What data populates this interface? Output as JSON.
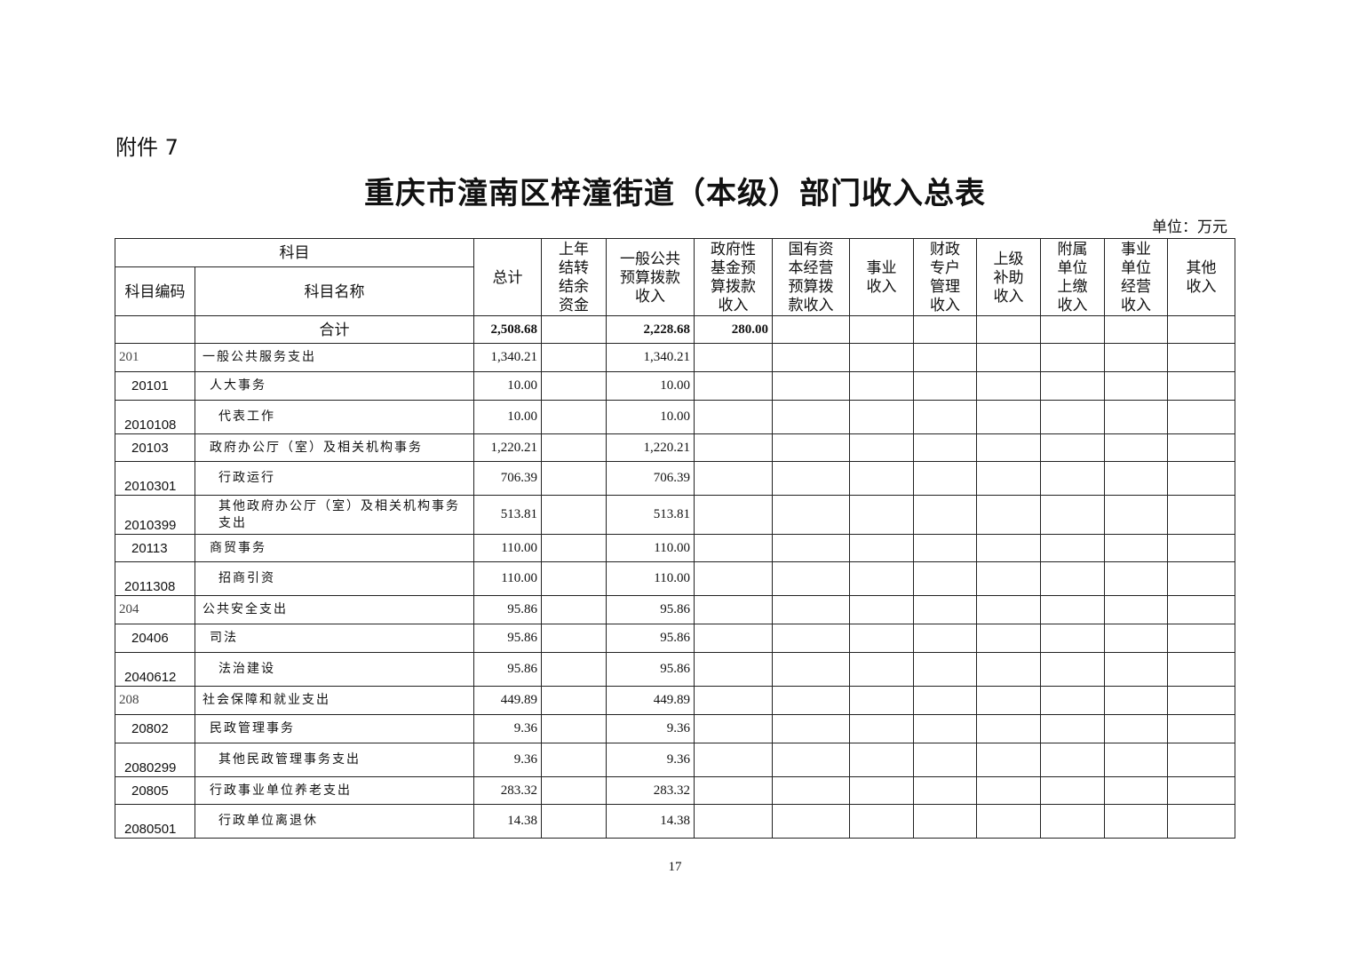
{
  "attachment": "附件 7",
  "title": "重庆市潼南区梓潼街道（本级）部门收入总表",
  "unit": "单位：万元",
  "headers": {
    "subject": "科目",
    "code": "科目编码",
    "name": "科目名称",
    "cols": [
      "总计",
      "上年\n结转\n结余\n资金",
      "一般公共\n预算拨款\n收入",
      "政府性\n基金预\n算拨款\n收入",
      "国有资\n本经营\n预算拨\n款收入",
      "事业\n收入",
      "财政\n专户\n管理\n收入",
      "上级\n补助\n收入",
      "附属\n单位\n上缴\n收入",
      "事业\n单位\n经营\n收入",
      "其他\n收入"
    ]
  },
  "total": {
    "label": "合计",
    "values": [
      "2,508.68",
      "",
      "2,228.68",
      "280.00",
      "",
      "",
      "",
      "",
      "",
      "",
      ""
    ]
  },
  "rows": [
    {
      "code": "201",
      "name": "一般公共服务支出",
      "level": 1,
      "total": "1,340.21",
      "general": "1,340.21"
    },
    {
      "code": "20101",
      "name": "人大事务",
      "level": 2,
      "total": "10.00",
      "general": "10.00"
    },
    {
      "code": "2010108",
      "name": "代表工作",
      "level": 3,
      "total": "10.00",
      "general": "10.00"
    },
    {
      "code": "20103",
      "name": "政府办公厅（室）及相关机构事务",
      "level": 2,
      "total": "1,220.21",
      "general": "1,220.21"
    },
    {
      "code": "2010301",
      "name": "行政运行",
      "level": 3,
      "total": "706.39",
      "general": "706.39"
    },
    {
      "code": "2010399",
      "name": "其他政府办公厅（室）及相关机构事务支出",
      "level": 3,
      "total": "513.81",
      "general": "513.81"
    },
    {
      "code": "20113",
      "name": "商贸事务",
      "level": 2,
      "total": "110.00",
      "general": "110.00"
    },
    {
      "code": "2011308",
      "name": "招商引资",
      "level": 3,
      "total": "110.00",
      "general": "110.00"
    },
    {
      "code": "204",
      "name": "公共安全支出",
      "level": 1,
      "total": "95.86",
      "general": "95.86"
    },
    {
      "code": "20406",
      "name": "司法",
      "level": 2,
      "total": "95.86",
      "general": "95.86"
    },
    {
      "code": "2040612",
      "name": "法治建设",
      "level": 3,
      "total": "95.86",
      "general": "95.86"
    },
    {
      "code": "208",
      "name": "社会保障和就业支出",
      "level": 1,
      "total": "449.89",
      "general": "449.89"
    },
    {
      "code": "20802",
      "name": "民政管理事务",
      "level": 2,
      "total": "9.36",
      "general": "9.36"
    },
    {
      "code": "2080299",
      "name": "其他民政管理事务支出",
      "level": 3,
      "total": "9.36",
      "general": "9.36"
    },
    {
      "code": "20805",
      "name": "行政事业单位养老支出",
      "level": 2,
      "total": "283.32",
      "general": "283.32"
    },
    {
      "code": "2080501",
      "name": "行政单位离退休",
      "level": 3,
      "total": "14.38",
      "general": "14.38"
    }
  ],
  "page_number": "17"
}
